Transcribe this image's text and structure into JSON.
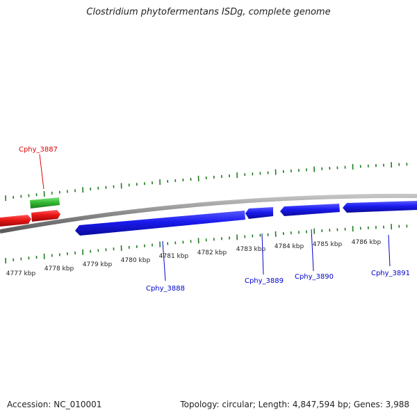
{
  "title": "Clostridium phytofermentans ISDg, complete genome",
  "accession": "Accession: NC_010001",
  "summary": "Topology: circular; Length: 4,847,594 bp; Genes: 3,988",
  "colors": {
    "backbone": "#8a8a8a",
    "tick": "#1f7a1f",
    "forward_strand_gene": "#e81515",
    "reverse_strand_gene": "#1a1aee",
    "rna_gene": "#33bb33",
    "forward_label": "#dd0000",
    "reverse_label": "#0000cc"
  },
  "scale_labels": [
    "4777 kbp",
    "4778 kbp",
    "4779 kbp",
    "4780 kbp",
    "4781 kbp",
    "4782 kbp",
    "4783 kbp",
    "4784 kbp",
    "4785 kbp",
    "4786 kbp"
  ],
  "gene_labels": [
    {
      "text": "Cphy_3887",
      "strand": "forward"
    },
    {
      "text": "Cphy_3888",
      "strand": "reverse"
    },
    {
      "text": "Cphy_3889",
      "strand": "reverse"
    },
    {
      "text": "Cphy_3890",
      "strand": "reverse"
    },
    {
      "text": "Cphy_3891",
      "strand": "reverse"
    }
  ]
}
